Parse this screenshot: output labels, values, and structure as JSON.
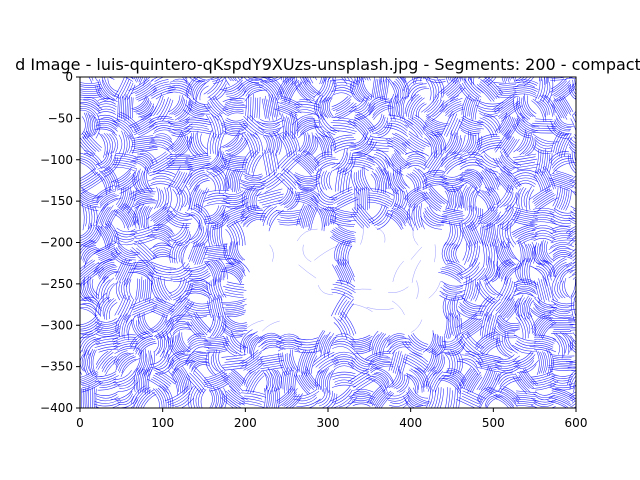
{
  "chart_data": {
    "type": "other",
    "title": "d Image - luis-quintero-qKspdY9XUzs-unsplash.jpg - Segments: 200 - compact",
    "xlabel": "",
    "ylabel": "",
    "xlim": [
      0,
      600
    ],
    "ylim": [
      -400,
      0
    ],
    "x_ticks": [
      0,
      100,
      200,
      300,
      400,
      500,
      600
    ],
    "y_ticks": [
      0,
      -50,
      -100,
      -150,
      -200,
      -250,
      -300,
      -350,
      -400
    ],
    "x_tick_labels": [
      "0",
      "100",
      "200",
      "300",
      "400",
      "500",
      "600"
    ],
    "y_tick_labels": [
      "0",
      "−50",
      "−100",
      "−150",
      "−200",
      "−250",
      "−300",
      "−350",
      "−400"
    ],
    "grid": false,
    "line_color": "#0000ff",
    "line_color_name": "blue",
    "blank_regions": [
      {
        "name": "left-hand",
        "x": [
          190,
          310
        ],
        "y": [
          -320,
          -170
        ]
      },
      {
        "name": "right-hand",
        "x": [
          340,
          450
        ],
        "y": [
          -320,
          -170
        ]
      }
    ]
  }
}
